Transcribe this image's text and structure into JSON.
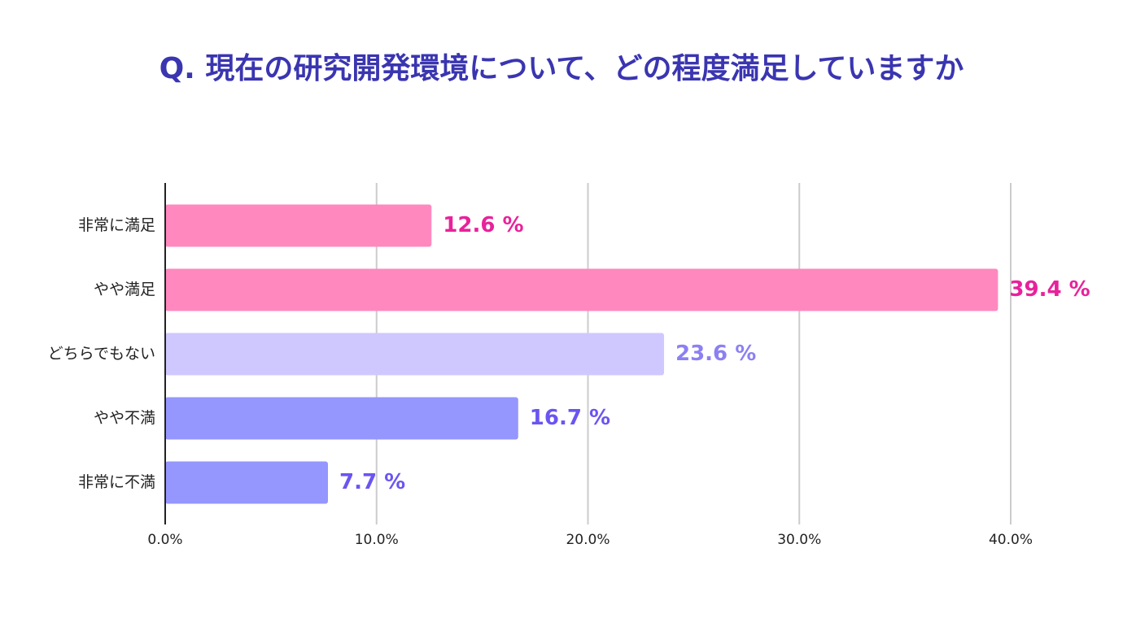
{
  "chart_data": {
    "type": "hbar",
    "title": "Q. 現在の研究開発環境について、どの程度満足していますか",
    "categories": [
      "非常に満足",
      "やや満足",
      "どちらでもない",
      "やや不満",
      "非常に不満"
    ],
    "values": [
      12.6,
      39.4,
      23.6,
      16.7,
      7.7
    ],
    "value_labels": [
      "12.6 %",
      "39.4 %",
      "23.6 %",
      "16.7 %",
      "7.7 %"
    ],
    "colors": [
      "#ff88bf",
      "#ff88bf",
      "#cfc8ff",
      "#9696ff",
      "#9696ff"
    ],
    "label_colors": [
      "#e8229a",
      "#e8229a",
      "#8c80f2",
      "#6a55f2",
      "#6a55f2"
    ],
    "xlim": [
      0,
      40
    ],
    "xticks": [
      {
        "value": 0,
        "label": "0.0%"
      },
      {
        "value": 10,
        "label": "10.0%"
      },
      {
        "value": 20,
        "label": "20.0%"
      },
      {
        "value": 30,
        "label": "30.0%"
      },
      {
        "value": 40,
        "label": "40.0%"
      }
    ],
    "grid": true
  }
}
